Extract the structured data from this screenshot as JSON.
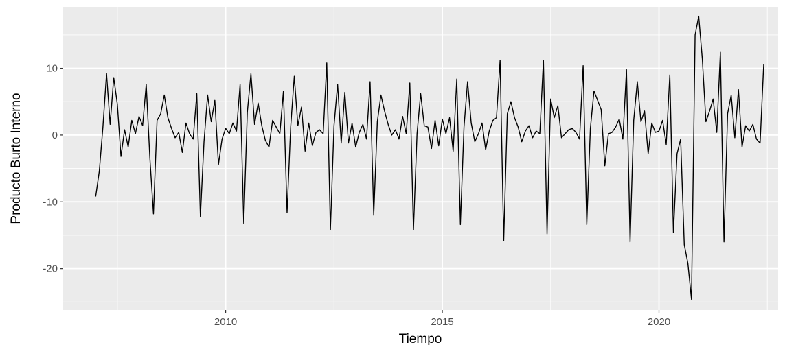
{
  "chart_data": {
    "type": "line",
    "title": "",
    "xlabel": "Tiempo",
    "ylabel": "Producto Burto Interno",
    "xlim": [
      2006.25,
      2022.75
    ],
    "ylim": [
      -26.2,
      19.2
    ],
    "x_major_ticks": [
      2010,
      2015,
      2020
    ],
    "x_minor_ticks": [
      2007.5,
      2012.5,
      2017.5,
      2022.5
    ],
    "y_major_ticks": [
      -20,
      -10,
      0,
      10
    ],
    "y_minor_ticks": [
      -25,
      -15,
      -5,
      5,
      15
    ],
    "x_tick_labels": [
      "2010",
      "2015",
      "2020"
    ],
    "y_tick_labels": [
      "-20",
      "-10",
      "0",
      "10"
    ],
    "grid": true,
    "colors": {
      "panel": "#ebebeb",
      "grid": "#ffffff",
      "line": "#000000"
    },
    "series": [
      {
        "x_start": 2007.0,
        "frequency": 12,
        "values": [
          -9.2,
          -5.4,
          1.2,
          9.2,
          1.6,
          8.6,
          4.6,
          -3.2,
          0.8,
          -1.8,
          2.2,
          0.2,
          2.8,
          1.4,
          7.6,
          -3.4,
          -11.8,
          2.2,
          3.2,
          6.0,
          2.6,
          1.0,
          -0.4,
          0.4,
          -2.6,
          1.8,
          0.2,
          -0.6,
          6.2,
          -12.2,
          -1.0,
          6.0,
          2.0,
          5.2,
          -4.4,
          -0.6,
          1.0,
          0.2,
          1.8,
          0.6,
          7.6,
          -13.2,
          3.4,
          9.2,
          1.6,
          4.8,
          1.4,
          -0.8,
          -1.8,
          2.2,
          1.2,
          0.2,
          6.6,
          -11.6,
          1.2,
          8.8,
          1.4,
          4.2,
          -2.4,
          1.8,
          -1.6,
          0.4,
          0.8,
          0.2,
          10.8,
          -14.2,
          1.4,
          7.6,
          -1.2,
          6.4,
          -1.2,
          1.8,
          -1.8,
          0.4,
          1.6,
          -0.6,
          8.0,
          -12.0,
          2.0,
          6.0,
          3.6,
          1.6,
          0.0,
          0.8,
          -0.6,
          2.8,
          0.2,
          7.8,
          -14.2,
          0.2,
          6.2,
          1.4,
          1.2,
          -2.0,
          2.2,
          -1.6,
          2.4,
          0.2,
          2.6,
          -2.4,
          8.4,
          -13.4,
          1.2,
          8.0,
          1.8,
          -1.0,
          0.2,
          1.8,
          -2.2,
          0.6,
          2.2,
          2.6,
          11.2,
          -15.8,
          3.2,
          5.0,
          2.6,
          1.2,
          -1.0,
          0.6,
          1.4,
          -0.4,
          0.6,
          0.2,
          11.2,
          -14.8,
          5.4,
          2.6,
          4.4,
          -0.4,
          0.2,
          0.8,
          1.0,
          0.4,
          -0.6,
          10.4,
          -13.4,
          1.0,
          6.6,
          5.2,
          3.8,
          -4.6,
          0.2,
          0.4,
          1.2,
          2.4,
          -0.6,
          9.8,
          -16.0,
          2.2,
          8.0,
          2.0,
          3.6,
          -2.8,
          1.8,
          0.4,
          0.6,
          2.2,
          -1.4,
          9.0,
          -14.6,
          -2.8,
          -0.6,
          -16.4,
          -19.2,
          -24.6,
          15.0,
          17.8,
          11.4,
          2.0,
          3.6,
          5.4,
          0.4,
          12.4,
          -16.0,
          3.2,
          6.0,
          -0.4,
          6.8,
          -1.8,
          1.4,
          0.6,
          1.6,
          -0.6,
          -1.2,
          10.6
        ]
      }
    ]
  }
}
